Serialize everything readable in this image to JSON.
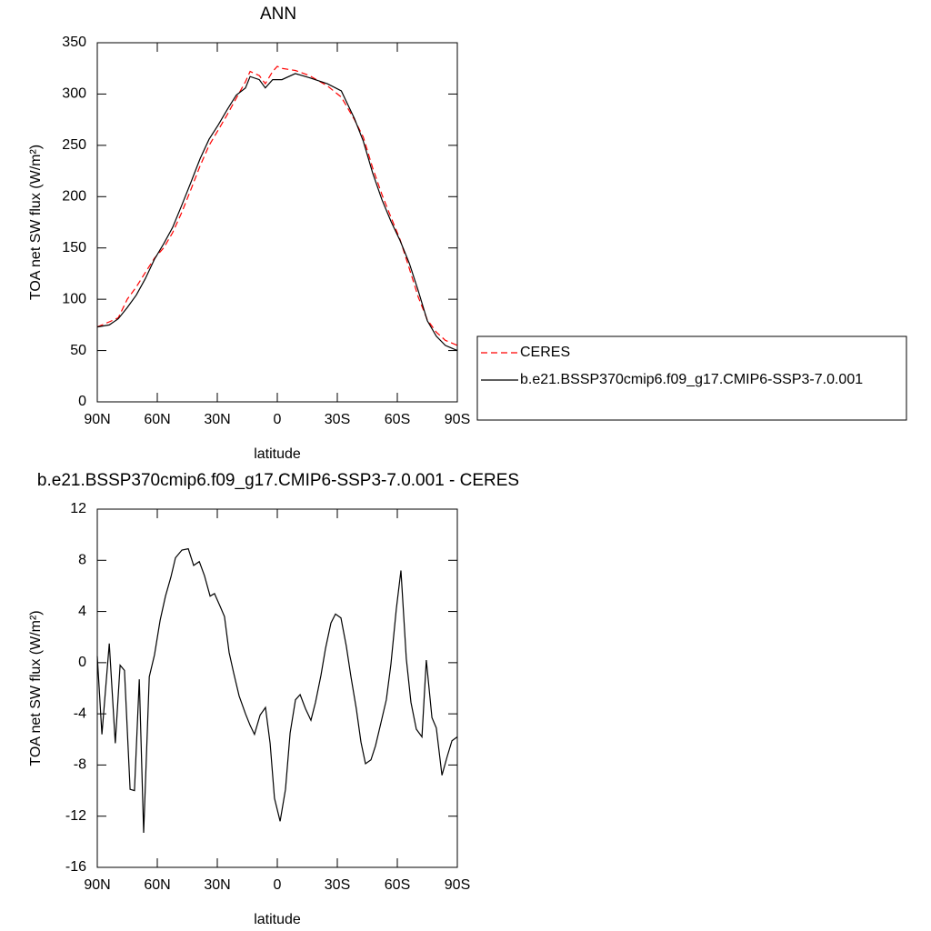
{
  "chart_data": [
    {
      "type": "line",
      "title": "ANN",
      "xlabel": "latitude",
      "ylabel": "TOA net SW flux (W/m²)",
      "x": [
        90,
        84,
        79.5,
        75,
        70.5,
        66,
        61.4,
        56.8,
        52.3,
        47.7,
        43.2,
        38.6,
        34.1,
        29.5,
        25,
        20.5,
        15.9,
        13.6,
        9,
        6,
        2.3,
        0,
        -2.3,
        -9,
        -16,
        -25,
        -32,
        -38.6,
        -43,
        -47.7,
        -52.3,
        -56.8,
        -61.4,
        -66,
        -70.5,
        -75,
        -79.5,
        -84,
        -90
      ],
      "series": [
        {
          "name": "CERES",
          "color": "#ff0000",
          "dash": true,
          "values": [
            73,
            78,
            82,
            100,
            112,
            126,
            140,
            150,
            165,
            185,
            207,
            230,
            250,
            265,
            280,
            296,
            312,
            322,
            318,
            310,
            322,
            327,
            325,
            323,
            318,
            308,
            297,
            275,
            258,
            228,
            202,
            180,
            158,
            130,
            102,
            80,
            68,
            60,
            55
          ]
        },
        {
          "name": "b.e21.BSSP370cmip6.f09_g17.CMIP6-SSP3-7.0.001",
          "color": "#000000",
          "dash": false,
          "values": [
            73,
            75,
            81,
            92,
            104,
            120,
            139,
            154,
            170,
            192,
            214,
            237,
            256,
            270,
            285,
            299,
            306,
            317,
            314,
            306,
            314,
            314,
            314,
            320,
            316,
            310,
            303,
            276,
            254,
            223,
            197,
            176,
            157,
            135,
            108,
            79,
            64,
            55,
            50
          ]
        }
      ],
      "xlim": [
        90,
        -90
      ],
      "xticks": [
        {
          "value": 90,
          "label": "90N"
        },
        {
          "value": 60,
          "label": "60N"
        },
        {
          "value": 30,
          "label": "30N"
        },
        0,
        {
          "value": -30,
          "label": "30S"
        },
        {
          "value": -60,
          "label": "60S"
        },
        {
          "value": -90,
          "label": "90S"
        }
      ],
      "ylim": [
        0,
        350
      ],
      "yticks": [
        0,
        50,
        100,
        150,
        200,
        250,
        300,
        350
      ],
      "legend": "right"
    },
    {
      "type": "line",
      "title": "b.e21.BSSP370cmip6.f09_g17.CMIP6-SSP3-7.0.001 - CERES",
      "xlabel": "latitude",
      "ylabel": "TOA net SW flux (W/m²)",
      "x": [
        90,
        87.7,
        84,
        81,
        78.6,
        76.4,
        73.6,
        71.4,
        69,
        66.8,
        64,
        61.4,
        58.6,
        55.9,
        53.2,
        50.9,
        47.7,
        44.5,
        41.8,
        39,
        36.4,
        33.6,
        31.4,
        28.6,
        26.4,
        24.1,
        21.8,
        19.1,
        15.9,
        13.6,
        11.4,
        8.6,
        5.9,
        3.6,
        1.4,
        -1.4,
        -4.1,
        -6.4,
        -9.1,
        -11.4,
        -14.1,
        -16.8,
        -19.1,
        -21.8,
        -24.1,
        -26.8,
        -29.1,
        -31.8,
        -34.5,
        -36.8,
        -39.5,
        -41.8,
        -44.1,
        -46.8,
        -49.1,
        -51.8,
        -54.5,
        -56.8,
        -59.5,
        -61.8,
        -64.5,
        -66.8,
        -69.5,
        -72.3,
        -74.5,
        -77.3,
        -79.5,
        -82.3,
        -85,
        -87.3,
        -90
      ],
      "series": [
        {
          "name": null,
          "color": "#000000",
          "dash": false,
          "values": [
            0.5,
            -5.6,
            1.5,
            -6.3,
            -0.2,
            -0.6,
            -9.9,
            -10.0,
            -1.3,
            -13.3,
            -1.1,
            0.6,
            3.3,
            5.2,
            6.7,
            8.2,
            8.8,
            8.9,
            7.6,
            7.9,
            6.8,
            5.2,
            5.4,
            4.4,
            3.6,
            0.8,
            -0.8,
            -2.6,
            -4.0,
            -4.9,
            -5.6,
            -4.1,
            -3.5,
            -6.3,
            -10.6,
            -12.4,
            -9.9,
            -5.5,
            -2.9,
            -2.5,
            -3.6,
            -4.5,
            -3.1,
            -1.0,
            1.1,
            3.1,
            3.8,
            3.5,
            1.3,
            -1.1,
            -3.6,
            -6.2,
            -7.9,
            -7.6,
            -6.5,
            -4.7,
            -2.9,
            -0.1,
            4.2,
            7.2,
            0.3,
            -3.1,
            -5.2,
            -5.8,
            0.2,
            -4.3,
            -5.1,
            -8.8,
            -7.3,
            -6.1,
            -5.8
          ]
        }
      ],
      "xlim": [
        90,
        -90
      ],
      "xticks": [
        {
          "value": 90,
          "label": "90N"
        },
        {
          "value": 60,
          "label": "60N"
        },
        {
          "value": 30,
          "label": "30N"
        },
        0,
        {
          "value": -30,
          "label": "30S"
        },
        {
          "value": -60,
          "label": "60S"
        },
        {
          "value": -90,
          "label": "90S"
        }
      ],
      "ylim": [
        -16,
        12
      ],
      "yticks": [
        -16,
        -12,
        -8,
        -4,
        0,
        4,
        8,
        12
      ]
    }
  ]
}
